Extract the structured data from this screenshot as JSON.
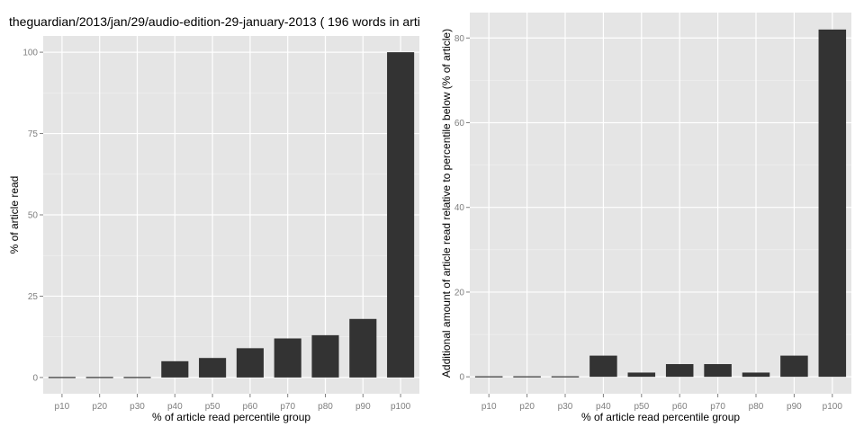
{
  "figure_title": "theguardian/2013/jan/29/audio-edition-29-january-2013 ( 196 words in arti",
  "colors": {
    "panel_bg": "#e5e5e5",
    "grid_major": "#ffffff",
    "bar_fill": "#333333",
    "tick_text": "#7f7f7f",
    "axis_title": "#000000"
  },
  "chart_data": [
    {
      "type": "bar",
      "xlabel": "% of article read percentile group",
      "ylabel": "% of article read",
      "ylim": [
        -5,
        105
      ],
      "yticks": [
        0,
        25,
        50,
        75,
        100
      ],
      "grid": true,
      "categories": [
        "p10",
        "p20",
        "p30",
        "p40",
        "p50",
        "p60",
        "p70",
        "p80",
        "p90",
        "p100"
      ],
      "values": [
        0,
        0,
        0,
        5,
        6,
        9,
        12,
        13,
        18,
        100
      ]
    },
    {
      "type": "bar",
      "xlabel": "% of article read percentile group",
      "ylabel": "Additional amount of article read relative to percentile below (% of article)",
      "ylim": [
        -4,
        86
      ],
      "yticks": [
        0,
        20,
        40,
        60,
        80
      ],
      "grid": true,
      "categories": [
        "p10",
        "p20",
        "p30",
        "p40",
        "p50",
        "p60",
        "p70",
        "p80",
        "p90",
        "p100"
      ],
      "values": [
        0,
        0,
        0,
        5,
        1,
        3,
        3,
        1,
        5,
        82
      ]
    }
  ]
}
